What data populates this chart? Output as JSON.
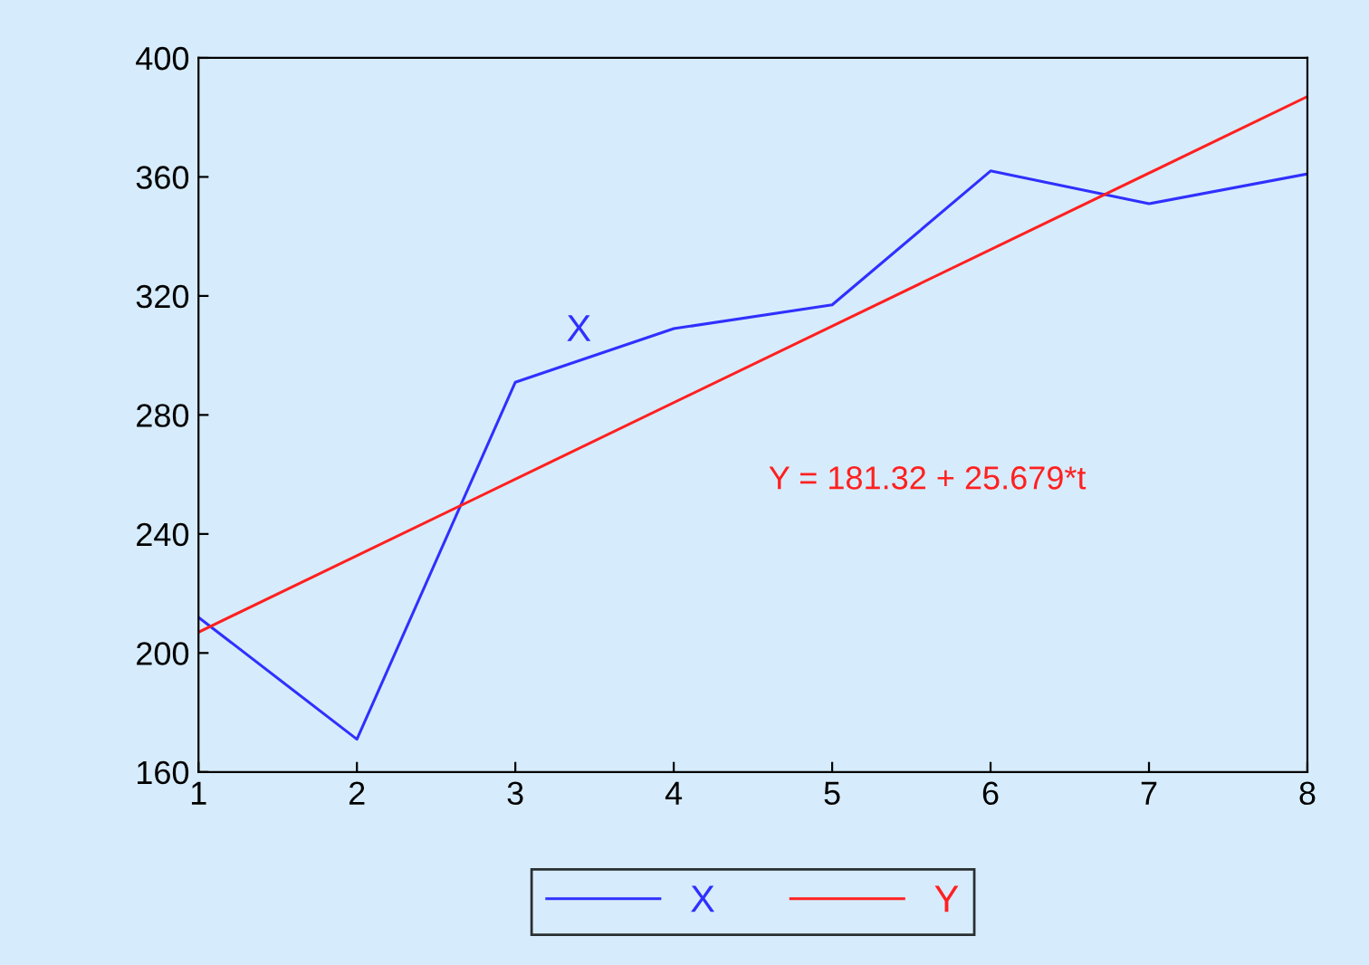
{
  "chart_data": {
    "type": "line",
    "series": [
      {
        "name": "X",
        "color": "#3030ff",
        "x": [
          1,
          2,
          3,
          4,
          5,
          6,
          7,
          8
        ],
        "values": [
          212,
          171,
          291,
          309,
          317,
          362,
          351,
          361
        ]
      },
      {
        "name": "Y",
        "color": "#ff2020",
        "x": [
          1,
          8
        ],
        "values": [
          207,
          387
        ]
      }
    ],
    "xlim": [
      1,
      8
    ],
    "xticks": [
      1,
      2,
      3,
      4,
      5,
      6,
      7,
      8
    ],
    "ylim": [
      160,
      400
    ],
    "yticks": [
      160,
      200,
      240,
      280,
      320,
      360,
      400
    ],
    "annotations": [
      "X",
      "Y = 181.32 + 25.679*t"
    ],
    "legend": "bottom",
    "grid": false,
    "marker": "none",
    "line_style": "solid"
  }
}
